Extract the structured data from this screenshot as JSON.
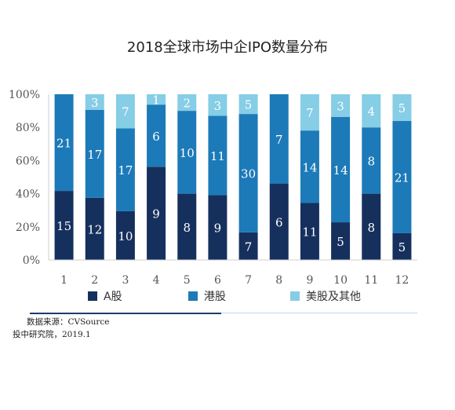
{
  "title": "2018全球市场中企IPO数量分布",
  "source_line1": "数据来源：CVSource",
  "source_line2": "投中研究院，2019.1",
  "chart_data": {
    "type": "bar",
    "stacked": "percent",
    "title": "2018全球市场中企IPO数量分布",
    "categories": [
      "1",
      "2",
      "3",
      "4",
      "5",
      "6",
      "7",
      "8",
      "9",
      "10",
      "11",
      "12"
    ],
    "series": [
      {
        "name": "A股",
        "color": "#16305e",
        "values": [
          15,
          12,
          10,
          9,
          8,
          9,
          7,
          6,
          11,
          5,
          8,
          5
        ]
      },
      {
        "name": "港股",
        "color": "#1d7ab8",
        "values": [
          21,
          17,
          17,
          6,
          10,
          11,
          30,
          7,
          14,
          14,
          8,
          21
        ]
      },
      {
        "name": "美股及其他",
        "color": "#86cde6",
        "values": [
          0,
          3,
          7,
          1,
          2,
          3,
          5,
          0,
          7,
          3,
          4,
          5
        ]
      }
    ],
    "y_ticks": [
      "0%",
      "20%",
      "40%",
      "60%",
      "80%",
      "100%"
    ],
    "ylim": [
      0,
      100
    ],
    "grid": false,
    "legend_position": "bottom"
  }
}
